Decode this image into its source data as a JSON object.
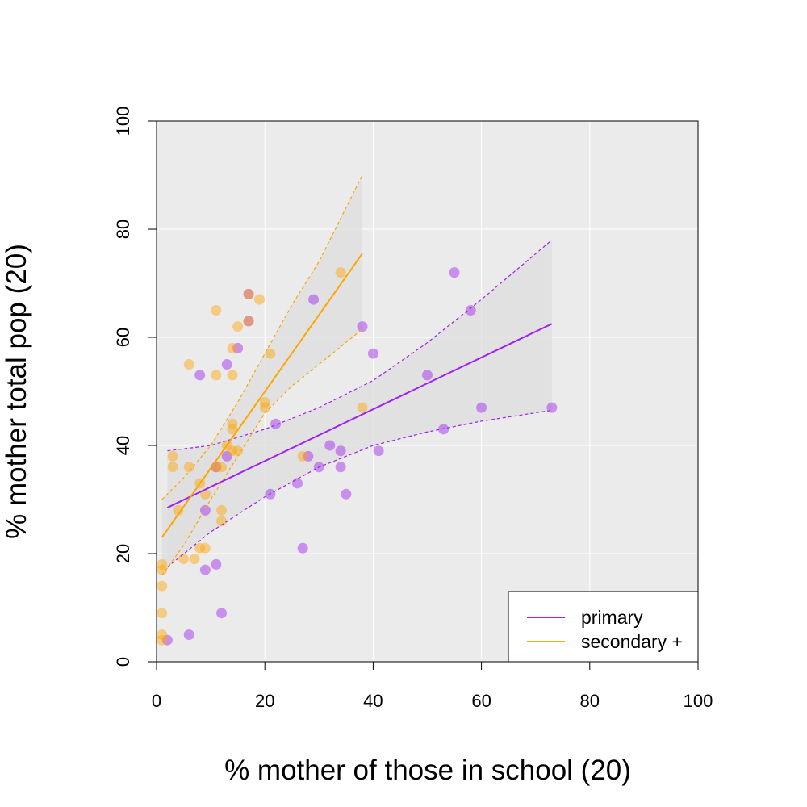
{
  "chart_data": {
    "type": "scatter",
    "title": "",
    "xlabel": "% mother of those in school (20)",
    "ylabel": "% mother total pop (20)",
    "xlim": [
      0,
      100
    ],
    "ylim": [
      0,
      100
    ],
    "xticks": [
      "0",
      "20",
      "40",
      "60",
      "80",
      "100"
    ],
    "yticks": [
      "0",
      "20",
      "40",
      "60",
      "80",
      "100"
    ],
    "grid": true,
    "legend_position": "bottom-right",
    "series": [
      {
        "name": "primary",
        "color": "#A020F0",
        "points": [
          [
            2,
            4
          ],
          [
            6,
            5
          ],
          [
            8,
            53
          ],
          [
            9,
            28
          ],
          [
            9,
            17
          ],
          [
            11,
            18
          ],
          [
            11,
            36
          ],
          [
            12,
            9
          ],
          [
            13,
            38
          ],
          [
            13,
            55
          ],
          [
            15,
            58
          ],
          [
            17,
            68
          ],
          [
            17,
            63
          ],
          [
            21,
            31
          ],
          [
            22,
            44
          ],
          [
            26,
            33
          ],
          [
            27,
            21
          ],
          [
            28,
            38
          ],
          [
            29,
            67
          ],
          [
            30,
            36
          ],
          [
            32,
            40
          ],
          [
            34,
            39
          ],
          [
            34,
            36
          ],
          [
            35,
            31
          ],
          [
            38,
            62
          ],
          [
            40,
            57
          ],
          [
            41,
            39
          ],
          [
            50,
            53
          ],
          [
            53,
            43
          ],
          [
            55,
            72
          ],
          [
            58,
            65
          ],
          [
            60,
            47
          ],
          [
            73,
            47
          ]
        ],
        "fit": {
          "x": [
            2,
            73
          ],
          "y": [
            28.5,
            62.5
          ]
        },
        "ci_upper": [
          [
            2,
            39
          ],
          [
            10,
            40
          ],
          [
            20,
            43
          ],
          [
            30,
            47
          ],
          [
            40,
            52
          ],
          [
            50,
            59
          ],
          [
            60,
            67
          ],
          [
            73,
            78
          ]
        ],
        "ci_lower": [
          [
            2,
            17.5
          ],
          [
            10,
            24
          ],
          [
            20,
            30.5
          ],
          [
            30,
            36
          ],
          [
            40,
            40
          ],
          [
            50,
            42.5
          ],
          [
            60,
            44.5
          ],
          [
            73,
            46.5
          ]
        ]
      },
      {
        "name": "secondary +",
        "color": "#FFA500",
        "points": [
          [
            1,
            18
          ],
          [
            1,
            17
          ],
          [
            1,
            14
          ],
          [
            1,
            9
          ],
          [
            1,
            5
          ],
          [
            1,
            4
          ],
          [
            3,
            38
          ],
          [
            3,
            36
          ],
          [
            4,
            28
          ],
          [
            5,
            19
          ],
          [
            6,
            55
          ],
          [
            6,
            36
          ],
          [
            7,
            19
          ],
          [
            8,
            33
          ],
          [
            8,
            21
          ],
          [
            9,
            21
          ],
          [
            9,
            31
          ],
          [
            11,
            65
          ],
          [
            11,
            53
          ],
          [
            11,
            36
          ],
          [
            12,
            28
          ],
          [
            12,
            26
          ],
          [
            12,
            36
          ],
          [
            13,
            40
          ],
          [
            14,
            58
          ],
          [
            14,
            53
          ],
          [
            14,
            44
          ],
          [
            14,
            43
          ],
          [
            14,
            39
          ],
          [
            15,
            62
          ],
          [
            15,
            39
          ],
          [
            17,
            68
          ],
          [
            17,
            63
          ],
          [
            19,
            67
          ],
          [
            20,
            48
          ],
          [
            20,
            47
          ],
          [
            21,
            57
          ],
          [
            27,
            38
          ],
          [
            34,
            72
          ],
          [
            38,
            47
          ]
        ],
        "fit": {
          "x": [
            1,
            38
          ],
          "y": [
            23,
            75.5
          ]
        },
        "ci_upper": [
          [
            1,
            30
          ],
          [
            5,
            34
          ],
          [
            10,
            40
          ],
          [
            15,
            48
          ],
          [
            20,
            57
          ],
          [
            25,
            66
          ],
          [
            30,
            74
          ],
          [
            38,
            90
          ]
        ],
        "ci_lower": [
          [
            1,
            16
          ],
          [
            5,
            21.5
          ],
          [
            10,
            30
          ],
          [
            15,
            38
          ],
          [
            20,
            46
          ],
          [
            25,
            51
          ],
          [
            30,
            55
          ],
          [
            38,
            61.5
          ]
        ]
      }
    ]
  },
  "colors": {
    "panel_background": "#EBEBEB",
    "gridline": "#FFFFFF",
    "ci_band": "#DEDEDE"
  }
}
